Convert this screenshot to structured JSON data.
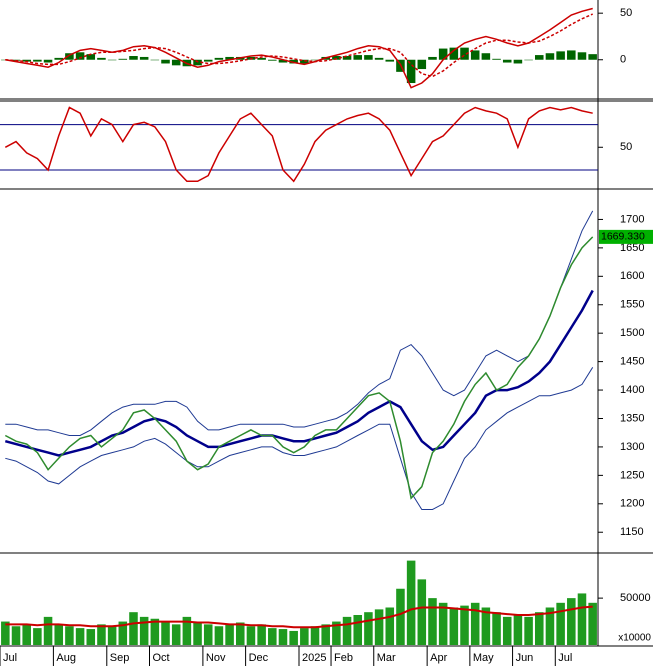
{
  "chart_data": [
    {
      "type": "combo",
      "ylim": [
        -40,
        62
      ],
      "yticks": [
        0,
        50
      ],
      "series": [
        {
          "kind": "bar",
          "color": "#006400",
          "values": [
            0,
            -1,
            -2,
            -2,
            -3,
            2,
            7,
            8,
            6,
            2,
            0,
            1,
            4,
            3,
            0,
            -4,
            -6,
            -7,
            -6,
            -2,
            2,
            3,
            3,
            3,
            2,
            -1,
            -3,
            -4,
            -4,
            0,
            3,
            4,
            4,
            5,
            5,
            2,
            -2,
            -13,
            -25,
            -10,
            3,
            12,
            13,
            13,
            10,
            7,
            1,
            -3,
            -4,
            0,
            5,
            7,
            9,
            10,
            8,
            6
          ]
        },
        {
          "kind": "line",
          "color": "#cc0000",
          "dash": true,
          "values": [
            0,
            -1,
            -2,
            -4,
            -5,
            -5,
            -2,
            2,
            6,
            8,
            8,
            9,
            10,
            12,
            13,
            12,
            8,
            3,
            -2,
            -4,
            -4,
            -3,
            -1,
            1,
            3,
            4,
            3,
            1,
            -1,
            -2,
            -1,
            1,
            4,
            7,
            10,
            12,
            12,
            8,
            -5,
            -15,
            -18,
            -12,
            -3,
            5,
            12,
            18,
            21,
            21,
            19,
            18,
            20,
            25,
            31,
            38,
            44,
            49
          ]
        },
        {
          "kind": "line",
          "color": "#cc0000",
          "values": [
            0,
            -2,
            -4,
            -6,
            -8,
            -3,
            5,
            10,
            12,
            10,
            8,
            10,
            14,
            15,
            13,
            8,
            2,
            -4,
            -8,
            -6,
            -2,
            0,
            2,
            4,
            5,
            3,
            0,
            -3,
            -5,
            -2,
            2,
            5,
            8,
            12,
            15,
            14,
            10,
            -5,
            -30,
            -25,
            -15,
            0,
            10,
            18,
            22,
            25,
            22,
            18,
            15,
            18,
            25,
            32,
            40,
            48,
            52,
            55
          ]
        }
      ]
    },
    {
      "type": "line",
      "ylim": [
        15,
        89
      ],
      "yticks": [
        50
      ],
      "levels": [
        30,
        70
      ],
      "series": [
        {
          "kind": "line",
          "color": "#cc0000",
          "values": [
            50,
            55,
            45,
            40,
            30,
            60,
            85,
            80,
            60,
            75,
            70,
            55,
            70,
            72,
            68,
            55,
            30,
            20,
            20,
            25,
            45,
            60,
            75,
            80,
            70,
            60,
            30,
            20,
            35,
            55,
            65,
            70,
            75,
            78,
            80,
            75,
            65,
            45,
            25,
            40,
            55,
            60,
            70,
            80,
            85,
            82,
            80,
            75,
            50,
            75,
            82,
            85,
            83,
            85,
            82,
            80
          ]
        }
      ]
    },
    {
      "type": "line",
      "ylim": [
        1117,
        1750
      ],
      "yticks": [
        1150,
        1200,
        1250,
        1300,
        1350,
        1400,
        1450,
        1500,
        1550,
        1600,
        1650,
        1700
      ],
      "series": [
        {
          "kind": "line",
          "color": "#1f3a93",
          "width": 1,
          "values": [
            1340,
            1340,
            1335,
            1330,
            1330,
            1325,
            1320,
            1320,
            1330,
            1345,
            1360,
            1370,
            1375,
            1375,
            1375,
            1380,
            1380,
            1370,
            1345,
            1330,
            1330,
            1335,
            1340,
            1340,
            1340,
            1340,
            1340,
            1335,
            1335,
            1340,
            1345,
            1350,
            1360,
            1375,
            1395,
            1410,
            1420,
            1470,
            1480,
            1460,
            1430,
            1400,
            1390,
            1400,
            1430,
            1460,
            1470,
            1460,
            1450,
            1460,
            1490,
            1530,
            1580,
            1630,
            1680,
            1715
          ]
        },
        {
          "kind": "line",
          "color": "#1f3a93",
          "width": 1,
          "values": [
            1280,
            1275,
            1265,
            1255,
            1240,
            1235,
            1250,
            1265,
            1275,
            1285,
            1290,
            1295,
            1300,
            1310,
            1315,
            1305,
            1290,
            1275,
            1265,
            1265,
            1275,
            1285,
            1290,
            1295,
            1300,
            1300,
            1290,
            1285,
            1285,
            1290,
            1295,
            1300,
            1310,
            1320,
            1330,
            1340,
            1340,
            1280,
            1220,
            1190,
            1190,
            1200,
            1240,
            1280,
            1300,
            1330,
            1345,
            1360,
            1370,
            1380,
            1390,
            1390,
            1395,
            1400,
            1410,
            1440
          ]
        },
        {
          "kind": "line",
          "color": "#00008b",
          "width": 2.5,
          "values": [
            1310,
            1305,
            1300,
            1295,
            1290,
            1285,
            1290,
            1295,
            1300,
            1310,
            1320,
            1325,
            1335,
            1345,
            1350,
            1345,
            1335,
            1320,
            1310,
            1300,
            1300,
            1305,
            1310,
            1315,
            1320,
            1320,
            1315,
            1310,
            1310,
            1315,
            1320,
            1325,
            1335,
            1345,
            1360,
            1370,
            1380,
            1370,
            1340,
            1310,
            1295,
            1300,
            1320,
            1340,
            1360,
            1390,
            1400,
            1400,
            1405,
            1415,
            1430,
            1450,
            1480,
            1510,
            1540,
            1575
          ]
        },
        {
          "kind": "line",
          "color": "#2e8b2e",
          "width": 1.5,
          "values": [
            1320,
            1310,
            1305,
            1290,
            1260,
            1280,
            1300,
            1315,
            1320,
            1300,
            1315,
            1330,
            1360,
            1365,
            1350,
            1330,
            1310,
            1275,
            1260,
            1270,
            1300,
            1310,
            1320,
            1330,
            1320,
            1320,
            1300,
            1290,
            1300,
            1320,
            1330,
            1330,
            1350,
            1370,
            1390,
            1395,
            1380,
            1310,
            1210,
            1230,
            1290,
            1310,
            1340,
            1380,
            1410,
            1430,
            1400,
            1410,
            1440,
            1460,
            1490,
            1530,
            1580,
            1620,
            1650,
            1669.33
          ],
          "value_labels": [
            null,
            null,
            null,
            null,
            null,
            null,
            null,
            null,
            null,
            null,
            null,
            null,
            null,
            null,
            null,
            null,
            null,
            null,
            null,
            null,
            null,
            null,
            null,
            null,
            null,
            null,
            null,
            null,
            null,
            null,
            null,
            null,
            null,
            null,
            null,
            null,
            null,
            null,
            null,
            null,
            null,
            null,
            null,
            null,
            null,
            null,
            null,
            null,
            null,
            null,
            null,
            null,
            null,
            null,
            null,
            "1669.330"
          ]
        }
      ]
    },
    {
      "type": "combo",
      "ylim": [
        0,
        96000
      ],
      "yticks": [
        50000
      ],
      "unit_label": "x10000",
      "categories": [
        "Jul",
        null,
        null,
        null,
        null,
        "Aug",
        null,
        null,
        null,
        null,
        "Sep",
        null,
        null,
        null,
        "Oct",
        null,
        null,
        null,
        null,
        "Nov",
        null,
        null,
        null,
        "Dec",
        null,
        null,
        null,
        null,
        "2025",
        null,
        null,
        "Feb",
        null,
        null,
        null,
        "Mar",
        null,
        null,
        null,
        null,
        "Apr",
        null,
        null,
        null,
        "May",
        null,
        null,
        null,
        "Jun",
        null,
        null,
        null,
        "Jul",
        null,
        null,
        null
      ],
      "series": [
        {
          "kind": "bar",
          "color": "#1f9a1f",
          "values": [
            25000,
            20000,
            22000,
            18000,
            30000,
            22000,
            20000,
            18000,
            17000,
            22000,
            20000,
            25000,
            35000,
            30000,
            28000,
            25000,
            22000,
            30000,
            25000,
            22000,
            20000,
            22000,
            24000,
            20000,
            22000,
            18000,
            17000,
            15000,
            18000,
            20000,
            22000,
            25000,
            30000,
            32000,
            35000,
            38000,
            40000,
            60000,
            90000,
            70000,
            50000,
            45000,
            40000,
            42000,
            45000,
            40000,
            35000,
            30000,
            32000,
            30000,
            35000,
            40000,
            45000,
            50000,
            55000,
            45000
          ]
        },
        {
          "kind": "line",
          "color": "#cc0000",
          "width": 2,
          "values": [
            22000,
            22000,
            22000,
            21000,
            22000,
            22000,
            21000,
            21000,
            20000,
            20000,
            20000,
            21000,
            23000,
            24000,
            25000,
            25000,
            25000,
            25000,
            24000,
            24000,
            23000,
            22000,
            22000,
            21000,
            21000,
            20000,
            20000,
            19000,
            19000,
            19000,
            20000,
            21000,
            22000,
            24000,
            26000,
            28000,
            30000,
            33000,
            38000,
            40000,
            40000,
            40000,
            39000,
            38000,
            37000,
            35000,
            34000,
            33000,
            32000,
            32000,
            33000,
            34000,
            36000,
            38000,
            40000,
            41000
          ]
        }
      ]
    }
  ]
}
